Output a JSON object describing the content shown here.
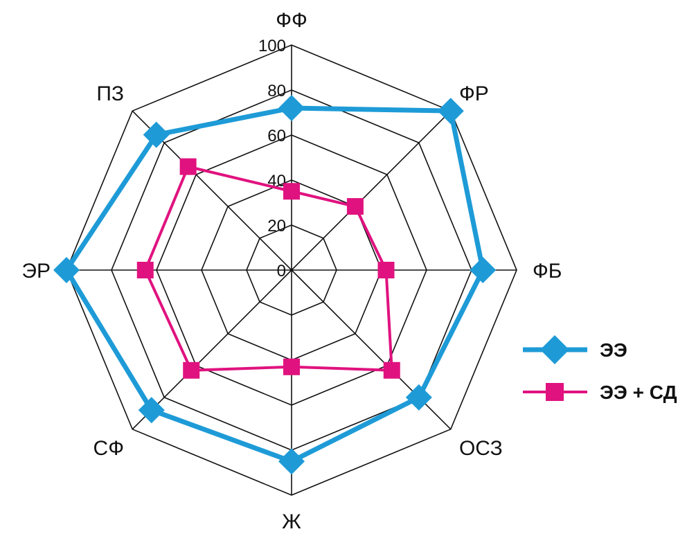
{
  "chart_data": {
    "type": "radar",
    "categories": [
      "ФФ",
      "ФР",
      "ФБ",
      "ОСЗ",
      "Ж",
      "СФ",
      "ЭР",
      "ПЗ"
    ],
    "rlim": [
      0,
      100
    ],
    "ticks": [
      "0",
      "20",
      "40",
      "60",
      "80",
      "100"
    ],
    "tick_values": [
      0,
      20,
      40,
      60,
      80,
      100
    ],
    "grid": true,
    "legend_position": "right",
    "series": [
      {
        "name": "ЭЭ",
        "values": [
          72,
          100,
          85,
          80,
          85,
          88,
          100,
          85
        ],
        "color": "#1e9bd7",
        "marker": "diamond"
      },
      {
        "name": "ЭЭ + СД",
        "values": [
          35,
          40,
          42,
          63,
          43,
          63,
          65,
          65
        ],
        "color": "#e0127f",
        "marker": "square"
      }
    ]
  }
}
